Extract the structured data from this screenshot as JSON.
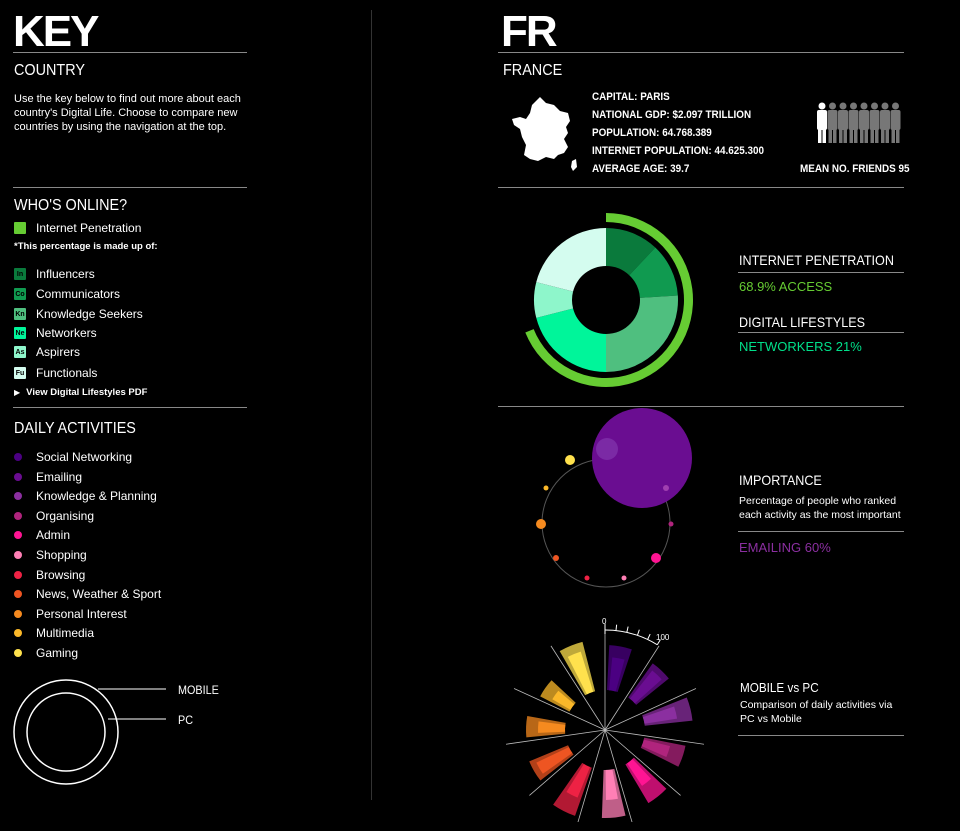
{
  "key": {
    "title": "KEY",
    "country_heading": "COUNTRY",
    "intro": "Use the key below to find out more about each country's Digital Life. Choose to compare new countries by using the navigation at the top.",
    "whos_online": {
      "heading": "WHO'S ONLINE?",
      "penetration_label": "Internet Penetration",
      "penetration_color": "#66cc33",
      "note": "*This percentage is made up of:",
      "segments": [
        {
          "abbr": "In",
          "label": "Influencers",
          "color": "#0a7a3c"
        },
        {
          "abbr": "Co",
          "label": "Communicators",
          "color": "#109a50"
        },
        {
          "abbr": "Kn",
          "label": "Knowledge Seekers",
          "color": "#4fbf7f"
        },
        {
          "abbr": "Ne",
          "label": "Networkers",
          "color": "#00f59a"
        },
        {
          "abbr": "As",
          "label": "Aspirers",
          "color": "#8ef6cb"
        },
        {
          "abbr": "Fu",
          "label": "Functionals",
          "color": "#d4fcef"
        }
      ],
      "pdf_link": "View Digital Lifestyles PDF"
    },
    "daily_activities": {
      "heading": "DAILY ACTIVITIES",
      "items": [
        {
          "label": "Social Networking",
          "color": "#4b0082"
        },
        {
          "label": "Emailing",
          "color": "#6a0d91"
        },
        {
          "label": "Knowledge & Planning",
          "color": "#8b2fa0"
        },
        {
          "label": "Organising",
          "color": "#b0247d"
        },
        {
          "label": "Admin",
          "color": "#ff1493"
        },
        {
          "label": "Shopping",
          "color": "#ff7fb5"
        },
        {
          "label": "Browsing",
          "color": "#ee2244"
        },
        {
          "label": "News, Weather & Sport",
          "color": "#ee5522"
        },
        {
          "label": "Personal Interest",
          "color": "#f58a1f"
        },
        {
          "label": "Multimedia",
          "color": "#fbb829"
        },
        {
          "label": "Gaming",
          "color": "#ffe14d"
        }
      ]
    },
    "ring_legend": {
      "mobile": "MOBILE",
      "pc": "PC"
    }
  },
  "country": {
    "code": "FR",
    "name": "FRANCE",
    "capital": "CAPITAL: PARIS",
    "gdp": "NATIONAL GDP: $2.097 TRILLION",
    "population": "POPULATION: 64.768.389",
    "internet_population": "INTERNET POPULATION: 44.625.300",
    "average_age": "AVERAGE AGE: 39.7",
    "mean_friends": "MEAN NO. FRIENDS 95",
    "mean_friends_value": 95
  },
  "penetration": {
    "heading": "INTERNET PENETRATION",
    "value_text": "68.9% ACCESS",
    "value": 68.9,
    "lifestyles_heading": "DIGITAL LIFESTYLES",
    "lifestyles_text": "NETWORKERS 21%",
    "segment_shares": [
      12,
      12,
      26,
      21,
      8,
      21
    ]
  },
  "importance": {
    "heading": "IMPORTANCE",
    "desc": "Percentage of people who ranked each activity as the most important",
    "value_text": "EMAILING 60%"
  },
  "mobile_pc": {
    "heading": "MOBILE vs PC",
    "desc": "Comparison of daily activities via PC vs Mobile",
    "scale_min": "0",
    "scale_max": "100"
  }
}
